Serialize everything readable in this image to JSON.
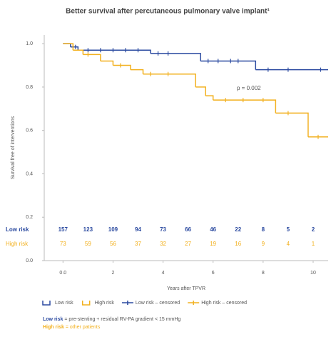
{
  "chart_data": {
    "type": "km",
    "title": "Better survival after percutaneous pulmonary valve implant¹",
    "y_label": "Survival free of interventions",
    "x_label": "Years after TPVR",
    "annotation": "p = 0.002",
    "xlim": [
      -0.75,
      10.6
    ],
    "ylim": [
      0,
      1.04
    ],
    "xticks": [
      {
        "value": 0,
        "label": "0.0"
      },
      2,
      4,
      6,
      8,
      10
    ],
    "yticks": [
      {
        "value": 0,
        "label": "0.0"
      },
      {
        "value": 0.2,
        "label": "0.2"
      },
      {
        "value": 0.4,
        "label": "0.4"
      },
      {
        "value": 0.6,
        "label": "0.6"
      },
      {
        "value": 0.8,
        "label": "0.8"
      },
      {
        "value": 1,
        "label": "1.0"
      }
    ],
    "series": [
      {
        "name": "Low risk",
        "color": "#2b4aa0",
        "x": [
          0,
          0.3,
          0.6,
          3.5,
          5.5,
          7.7,
          10.6
        ],
        "values": [
          1.0,
          0.985,
          0.97,
          0.955,
          0.92,
          0.88,
          0.88
        ]
      },
      {
        "name": "High risk",
        "color": "#f2b01e",
        "x": [
          0,
          0.4,
          0.8,
          1.5,
          2,
          2.7,
          3.2,
          5.3,
          5.7,
          6,
          8.5,
          9.8,
          10.6
        ],
        "values": [
          1.0,
          0.97,
          0.95,
          0.92,
          0.9,
          0.88,
          0.86,
          0.8,
          0.76,
          0.74,
          0.68,
          0.57,
          0.57
        ]
      }
    ],
    "censored": [
      {
        "name": "Low risk – censored",
        "color": "#2b4aa0",
        "x": [
          0.5,
          1,
          1.5,
          2,
          2.5,
          3,
          3.8,
          4.2,
          5.8,
          6.2,
          6.7,
          7,
          8.2,
          9,
          10.3
        ],
        "values": [
          0.985,
          0.97,
          0.97,
          0.97,
          0.97,
          0.97,
          0.955,
          0.955,
          0.92,
          0.92,
          0.92,
          0.92,
          0.88,
          0.88,
          0.88
        ]
      },
      {
        "name": "High risk – censored",
        "color": "#f2b01e",
        "x": [
          1,
          2.3,
          3.5,
          4.2,
          6.5,
          7.2,
          8,
          9,
          10.2
        ],
        "values": [
          0.95,
          0.9,
          0.86,
          0.86,
          0.74,
          0.74,
          0.74,
          0.68,
          0.57
        ]
      }
    ],
    "risk_table": [
      {
        "label": "Low risk",
        "color": "#2b4aa0",
        "counts": [
          157,
          123,
          109,
          94,
          73,
          66,
          46,
          22,
          8,
          5,
          2
        ]
      },
      {
        "label": "High risk",
        "color": "#f2b01e",
        "counts": [
          73,
          59,
          56,
          37,
          32,
          27,
          19,
          16,
          9,
          4,
          1
        ]
      }
    ],
    "footnotes": [
      {
        "term": "Low risk",
        "text": " = pre-stenting + residual RV-PA gradient < 15 mmHg"
      },
      {
        "term": "High risk",
        "text": " = other patients"
      }
    ]
  }
}
